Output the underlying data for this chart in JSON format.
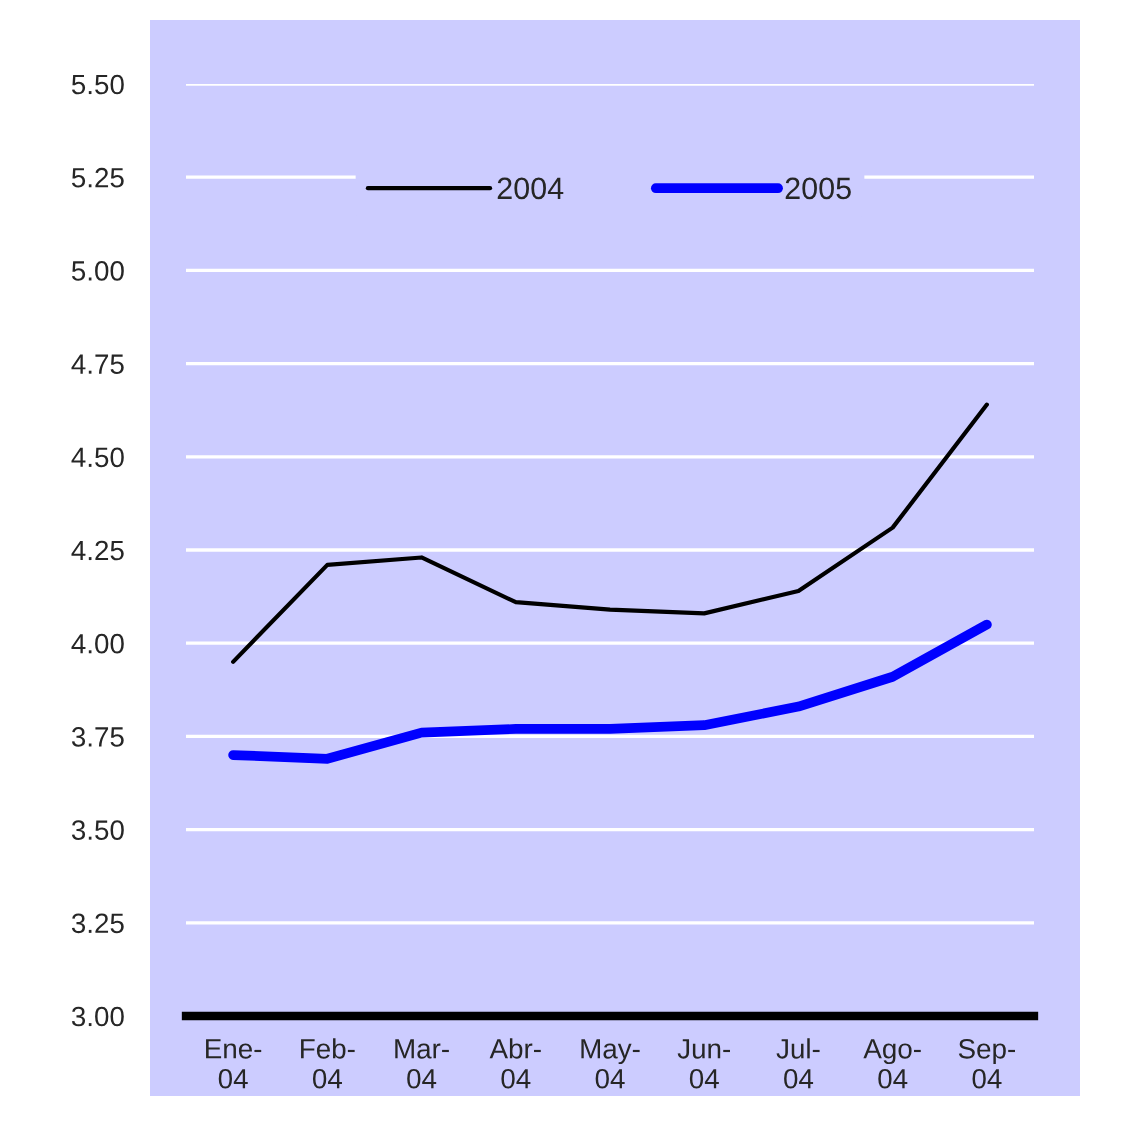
{
  "chart_data": {
    "type": "line",
    "categories": [
      "Ene-\n04",
      "Feb-\n04",
      "Mar-\n04",
      "Abr-\n04",
      "May-\n04",
      "Jun-\n04",
      "Jul-\n04",
      "Ago-\n04",
      "Sep-\n04"
    ],
    "series": [
      {
        "name": "2004",
        "color": "#000000",
        "values": [
          3.95,
          4.21,
          4.23,
          4.11,
          4.09,
          4.08,
          4.14,
          4.31,
          4.64
        ]
      },
      {
        "name": "2005",
        "color": "#0000ff",
        "values": [
          3.7,
          3.69,
          3.76,
          3.77,
          3.77,
          3.78,
          3.83,
          3.91,
          4.05
        ]
      }
    ],
    "ylim": [
      3.0,
      5.5
    ],
    "yticks": [
      {
        "value": 3.0,
        "label": "3.00"
      },
      {
        "value": 3.25,
        "label": "3.25"
      },
      {
        "value": 3.5,
        "label": "3.50"
      },
      {
        "value": 3.75,
        "label": "3.75"
      },
      {
        "value": 4.0,
        "label": "4.00"
      },
      {
        "value": 4.25,
        "label": "4.25"
      },
      {
        "value": 4.5,
        "label": "4.50"
      },
      {
        "value": 4.75,
        "label": "4.75"
      },
      {
        "value": 5.0,
        "label": "5.00"
      },
      {
        "value": 5.25,
        "label": "5.25"
      },
      {
        "value": 5.5,
        "label": "5.50"
      }
    ],
    "grid": "y",
    "legend": "top",
    "marker": "none",
    "line_style": "solid"
  }
}
